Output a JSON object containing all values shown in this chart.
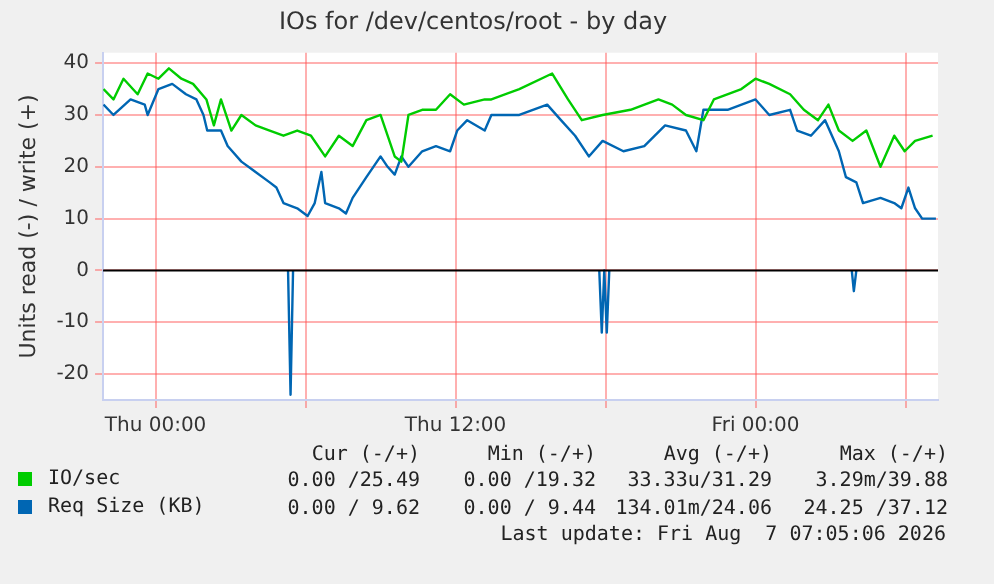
{
  "chart_data": {
    "type": "line",
    "title": "IOs for /dev/centos/root - by day",
    "ylabel": "Units read (-) / write (+)",
    "xlim": [
      "2026-08-05T21:54",
      "2026-08-07T07:18"
    ],
    "xticks": [
      {
        "value": "2026-08-06T00:00",
        "label": "Thu 00:00"
      },
      {
        "value": "2026-08-06T06:00",
        "label": null
      },
      {
        "value": "2026-08-06T12:00",
        "label": "Thu 12:00"
      },
      {
        "value": "2026-08-06T18:00",
        "label": null
      },
      {
        "value": "2026-08-07T00:00",
        "label": "Fri 00:00"
      },
      {
        "value": "2026-08-07T06:00",
        "label": null
      }
    ],
    "ylim": [
      -25,
      42
    ],
    "yticks": [
      -20,
      -10,
      0,
      10,
      20,
      30,
      40
    ],
    "grid": true,
    "legend": "bottom",
    "marker": "none",
    "line_style": "solid",
    "ref_lines": [
      {
        "axis": "y",
        "value": 0,
        "label": null,
        "color": "#000000"
      }
    ],
    "series": [
      {
        "name": "IO/sec",
        "color": "#00cc00",
        "x": [
          "2026-08-05T21:55",
          "2026-08-05T22:19",
          "2026-08-05T22:43",
          "2026-08-05T23:17",
          "2026-08-05T23:41",
          "2026-08-06T00:07",
          "2026-08-06T00:32",
          "2026-08-06T01:02",
          "2026-08-06T01:30",
          "2026-08-06T02:02",
          "2026-08-06T02:20",
          "2026-08-06T02:37",
          "2026-08-06T03:02",
          "2026-08-06T03:26",
          "2026-08-06T04:00",
          "2026-08-06T04:34",
          "2026-08-06T05:07",
          "2026-08-06T05:40",
          "2026-08-06T06:13",
          "2026-08-06T06:47",
          "2026-08-06T07:20",
          "2026-08-06T07:53",
          "2026-08-06T08:26",
          "2026-08-06T09:00",
          "2026-08-06T09:34",
          "2026-08-06T09:50",
          "2026-08-06T10:07",
          "2026-08-06T10:40",
          "2026-08-06T11:13",
          "2026-08-06T11:47",
          "2026-08-06T12:20",
          "2026-08-06T13:10",
          "2026-08-06T13:26",
          "2026-08-06T14:33",
          "2026-08-06T15:52",
          "2026-08-06T16:30",
          "2026-08-06T17:03",
          "2026-08-06T17:53",
          "2026-08-06T19:00",
          "2026-08-06T20:07",
          "2026-08-06T20:40",
          "2026-08-06T21:13",
          "2026-08-06T21:55",
          "2026-08-06T22:20",
          "2026-08-06T23:26",
          "2026-08-07T00:00",
          "2026-08-07T00:33",
          "2026-08-07T01:23",
          "2026-08-07T01:56",
          "2026-08-07T02:30",
          "2026-08-07T02:55",
          "2026-08-07T03:20",
          "2026-08-07T03:53",
          "2026-08-07T04:26",
          "2026-08-07T05:00",
          "2026-08-07T05:33",
          "2026-08-07T05:58",
          "2026-08-07T06:23",
          "2026-08-07T07:05"
        ],
        "values": [
          35,
          33,
          37,
          34,
          38,
          37,
          39,
          37,
          36,
          33,
          28,
          33,
          27,
          30,
          28,
          27,
          26,
          27,
          26,
          22,
          26,
          24,
          29,
          30,
          22,
          21,
          30,
          31,
          31,
          34,
          32,
          33,
          33,
          35,
          38,
          33,
          29,
          30,
          31,
          33,
          32,
          30,
          29,
          33,
          35,
          37,
          36,
          34,
          31,
          29,
          32,
          27,
          25,
          27,
          20,
          26,
          23,
          25,
          26
        ]
      },
      {
        "name": "Req Size (KB)",
        "color": "#0066b3",
        "x": [
          "2026-08-05T21:55",
          "2026-08-05T22:19",
          "2026-08-05T23:00",
          "2026-08-05T23:34",
          "2026-08-05T23:41",
          "2026-08-06T00:07",
          "2026-08-06T00:40",
          "2026-08-06T01:13",
          "2026-08-06T01:38",
          "2026-08-06T01:55",
          "2026-08-06T02:04",
          "2026-08-06T02:37",
          "2026-08-06T02:53",
          "2026-08-06T03:26",
          "2026-08-06T04:00",
          "2026-08-06T04:34",
          "2026-08-06T04:50",
          "2026-08-06T05:07",
          "2026-08-06T05:40",
          "2026-08-06T06:05",
          "2026-08-06T06:22",
          "2026-08-06T06:38",
          "2026-08-06T06:47",
          "2026-08-06T07:20",
          "2026-08-06T07:37",
          "2026-08-06T07:53",
          "2026-08-06T08:26",
          "2026-08-06T09:00",
          "2026-08-06T09:17",
          "2026-08-06T09:34",
          "2026-08-06T09:50",
          "2026-08-06T10:07",
          "2026-08-06T10:40",
          "2026-08-06T11:13",
          "2026-08-06T11:47",
          "2026-08-06T12:04",
          "2026-08-06T12:28",
          "2026-08-06T13:10",
          "2026-08-06T13:26",
          "2026-08-06T14:33",
          "2026-08-06T15:40",
          "2026-08-06T16:13",
          "2026-08-06T16:47",
          "2026-08-06T17:20",
          "2026-08-06T17:53",
          "2026-08-06T18:43",
          "2026-08-06T19:33",
          "2026-08-06T20:23",
          "2026-08-06T21:13",
          "2026-08-06T21:38",
          "2026-08-06T21:55",
          "2026-08-06T22:53",
          "2026-08-07T00:00",
          "2026-08-07T00:33",
          "2026-08-07T01:23",
          "2026-08-07T01:40",
          "2026-08-07T02:13",
          "2026-08-07T02:47",
          "2026-08-07T03:20",
          "2026-08-07T03:37",
          "2026-08-07T04:02",
          "2026-08-07T04:18",
          "2026-08-07T05:00",
          "2026-08-07T05:33",
          "2026-08-07T05:50",
          "2026-08-07T06:07",
          "2026-08-07T06:23",
          "2026-08-07T06:40",
          "2026-08-07T07:13"
        ],
        "values": [
          32,
          30,
          33,
          32,
          30,
          35,
          36,
          34,
          33,
          30,
          27,
          27,
          24,
          21,
          19,
          17,
          16,
          13,
          12,
          10.5,
          13,
          19,
          13,
          12,
          11,
          14,
          18,
          22,
          20,
          18.5,
          22,
          20,
          23,
          24,
          23,
          27,
          29,
          27,
          30,
          30,
          32,
          29,
          26,
          22,
          25,
          23,
          24,
          28,
          27,
          23,
          31,
          31,
          33,
          30,
          31,
          27,
          26,
          29,
          23,
          18,
          17,
          13,
          14,
          13,
          12,
          16,
          12,
          10,
          10
        ]
      },
      {
        "color": "#0066b3",
        "x": [
          "2026-08-06T05:18",
          "2026-08-06T05:24",
          "2026-08-06T05:30",
          "2026-08-06T11:00",
          "2026-08-06T17:45",
          "2026-08-06T17:51",
          "2026-08-06T17:57",
          "2026-08-06T18:03",
          "2026-08-06T18:09",
          "2026-08-06T23:00",
          "2026-08-07T03:51",
          "2026-08-07T03:56",
          "2026-08-07T04:02"
        ],
        "values": [
          0,
          -24,
          0,
          null,
          0,
          -12,
          0,
          -12,
          0,
          null,
          0,
          -4,
          0
        ]
      }
    ],
    "annotations": [
      "Cur (-/+)",
      "Min (-/+)",
      "Avg (-/+)",
      "Max (-/+)",
      "0.00 /25.49",
      "0.00 /19.32",
      "33.33u/31.29",
      "3.29m/39.88",
      "0.00 / 9.62",
      "0.00 / 9.44",
      "134.01m/24.06",
      "24.25 /37.12",
      "Last update: Fri Aug  7 07:05:06 2026"
    ]
  }
}
